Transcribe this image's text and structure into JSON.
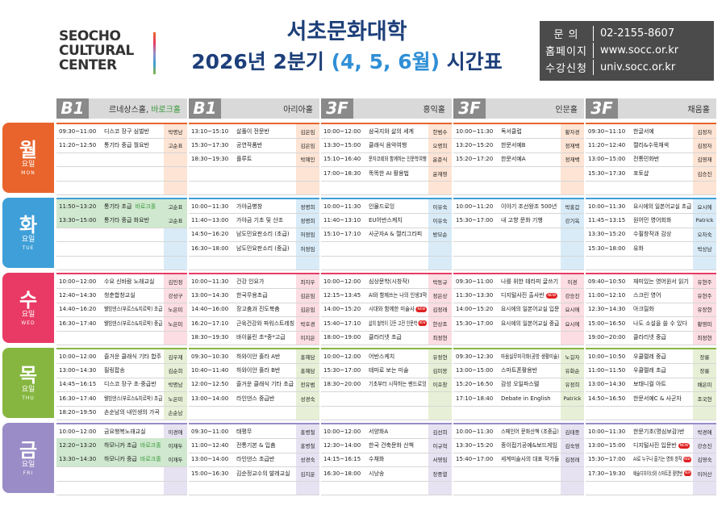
{
  "header": {
    "logo": [
      "SEOCHO",
      "CULTURAL",
      "CENTER"
    ],
    "title": "서초문화대학",
    "subtitle": [
      "2026년 2분기",
      "(4, 5, 6월)",
      "시간표"
    ],
    "contacts": [
      {
        "label": "문 의",
        "value": "02-2155-8607"
      },
      {
        "label": "홈페이지",
        "value": "www.socc.or.kr"
      },
      {
        "label": "수강신청",
        "value": "univ.socc.or.kr"
      }
    ]
  },
  "halls": [
    {
      "floor": "B1",
      "name": "르네상스홀,",
      "extra": "바로크홀"
    },
    {
      "floor": "B1",
      "name": "아리아홀"
    },
    {
      "floor": "3F",
      "name": "홍익홀"
    },
    {
      "floor": "3F",
      "name": "인문홀"
    },
    {
      "floor": "3F",
      "name": "채움홀"
    }
  ],
  "days": [
    {
      "name": "월",
      "suffix": "요일",
      "en": "MON",
      "color": "#e8642c",
      "tint": "#fde4d4"
    },
    {
      "name": "화",
      "suffix": "요일",
      "en": "TUE",
      "color": "#3f9fd8",
      "tint": "#d8ebf7"
    },
    {
      "name": "수",
      "suffix": "요일",
      "en": "WED",
      "color": "#e83a64",
      "tint": "#fbdde3"
    },
    {
      "name": "목",
      "suffix": "요일",
      "en": "THU",
      "color": "#86b640",
      "tint": "#e7f0d6"
    },
    {
      "name": "금",
      "suffix": "요일",
      "en": "FRI",
      "color": "#9a8cc6",
      "tint": "#e7e2f2"
    }
  ],
  "schedule": [
    [
      [
        {
          "time": "09:30~11:00",
          "course": "디스코 장구 심벌반",
          "teacher": "박명남"
        },
        {
          "time": "11:20~12:50",
          "course": "통기타 중급 월요반",
          "teacher": "고순표"
        }
      ],
      [
        {
          "time": "13:10~15:10",
          "course": "살풀이 전문반",
          "teacher": "김은임"
        },
        {
          "time": "15:30~17:30",
          "course": "공연작품반",
          "teacher": "김은임"
        },
        {
          "time": "18:30~19:30",
          "course": "플루트",
          "teacher": "박혜인"
        }
      ],
      [
        {
          "time": "10:00~12:00",
          "course": "삼국지와 삶의 세계",
          "teacher": "한범수"
        },
        {
          "time": "13:30~15:00",
          "course": "클래식 음악여행",
          "teacher": "오명희"
        },
        {
          "time": "15:10~16:40",
          "course": "문자코테와 함께하는 인문학여행",
          "teacher": "윤준식"
        },
        {
          "time": "17:00~18:30",
          "course": "똑똑한 AI 활용법",
          "teacher": "윤재영"
        }
      ],
      [
        {
          "time": "10:00~11:30",
          "course": "독서클럽",
          "teacher": "황자경"
        },
        {
          "time": "13:20~15:20",
          "course": "한문서예B",
          "teacher": "정재백"
        },
        {
          "time": "15:20~17:20",
          "course": "한문서예A",
          "teacher": "정재백"
        }
      ],
      [
        {
          "time": "09:30~11:10",
          "course": "한글서예",
          "teacher": "김정자"
        },
        {
          "time": "11:20~12:40",
          "course": "캘리&수묵채색",
          "teacher": "김정자"
        },
        {
          "time": "13:00~15:00",
          "course": "전통민화반",
          "teacher": "김영재"
        },
        {
          "time": "15:30~17:30",
          "course": "포토샵",
          "teacher": "김승진"
        }
      ]
    ],
    [
      [
        {
          "time": "11:50~13:20",
          "course": "통기타 초급",
          "tag": "바로크홀",
          "teacher": "고순표",
          "highlight": true
        },
        {
          "time": "13:30~15:00",
          "course": "통기타 중급 화요반",
          "teacher": "고순표",
          "highlight": true
        }
      ],
      [
        {
          "time": "10:00~11:30",
          "course": "가야금병창",
          "teacher": "정명희"
        },
        {
          "time": "11:40~13:00",
          "course": "가야금 기초 및 산조",
          "teacher": "정명희"
        },
        {
          "time": "14:50~16:20",
          "course": "남도민요판소리 (초급)",
          "teacher": "허정임"
        },
        {
          "time": "16:30~18:00",
          "course": "남도민요판소리 (중급)",
          "teacher": "허정임"
        }
      ],
      [
        {
          "time": "10:00~11:30",
          "course": "인물드로잉",
          "teacher": "이유숙"
        },
        {
          "time": "11:40~13:10",
          "course": "EU어반스케치",
          "teacher": "이유숙"
        },
        {
          "time": "15:10~17:10",
          "course": "사군자A & 캘리그라피",
          "teacher": "방모순"
        }
      ],
      [
        {
          "time": "10:00~11:20",
          "course": "이야기 조선왕조 500년",
          "teacher": "박홍갑"
        },
        {
          "time": "15:30~17:00",
          "course": "내 고향 문화 기행",
          "teacher": "강기옥"
        }
      ],
      [
        {
          "time": "10:00~11:30",
          "course": "요시에의 일본어교실 초급",
          "teacher": "요시에"
        },
        {
          "time": "11:45~13:15",
          "course": "원어민 영어회화",
          "teacher": "Patrick"
        },
        {
          "time": "13:30~15:20",
          "course": "수필창작과 감상",
          "teacher": "오차숙"
        },
        {
          "time": "15:30~18:00",
          "course": "유화",
          "teacher": "박상남"
        }
      ]
    ],
    [
      [
        {
          "time": "10:00~12:00",
          "course": "수요 신바람 노래교실",
          "teacher": "김민정"
        },
        {
          "time": "12:40~14:30",
          "course": "청춘합창교실",
          "teacher": "강성구"
        },
        {
          "time": "14:40~16:20",
          "course": "웰빙댄스(부르스&지르박) 초급",
          "teacher": "노은미"
        },
        {
          "time": "16:30~17:40",
          "course": "웰빙댄스(부르스&지르박) 중급",
          "teacher": "노은미"
        }
      ],
      [
        {
          "time": "10:00~11:30",
          "course": "건강 인요가",
          "teacher": "최지우"
        },
        {
          "time": "13:00~14:30",
          "course": "한국무용초급",
          "teacher": "김은임"
        },
        {
          "time": "14:40~16:00",
          "course": "장고춤과 진도북춤",
          "teacher": "김은임"
        },
        {
          "time": "16:20~17:10",
          "course": "근육건강와 파워스트레칭",
          "teacher": "박호경"
        },
        {
          "time": "18:30~19:30",
          "course": "바이올린 초*중*고급",
          "teacher": "이지은"
        }
      ],
      [
        {
          "time": "10:00~12:00",
          "course": "심상문학(시창작)",
          "teacher": "박동규"
        },
        {
          "time": "12:15~13:45",
          "course": "AI와 함께쓰는 나의 인생3막",
          "teacher": "정은상"
        },
        {
          "time": "14:00~15:20",
          "course": "시대와 함께한 미술사",
          "badge": "NEW",
          "teacher": "김정래"
        },
        {
          "time": "15:40~17:10",
          "course": "삶의 철학이 깃든 고전 인문학",
          "badge": "NEW",
          "teacher": "한상조"
        },
        {
          "time": "18:00~19:00",
          "course": "클라리넷 초급",
          "teacher": "최정현"
        }
      ],
      [
        {
          "time": "09:30~11:00",
          "course": "나를 위한 테라피 글쓰기",
          "teacher": "이경"
        },
        {
          "time": "11:30~13:30",
          "course": "디지털사진 출사반",
          "badge": "NEW",
          "teacher": "강승진"
        },
        {
          "time": "14:00~15:20",
          "course": "요시에의 일본어교실 입문",
          "teacher": "요시에"
        },
        {
          "time": "15:30~17:00",
          "course": "요시에의 일본어교실 중급",
          "teacher": "요시에"
        }
      ],
      [
        {
          "time": "09:40~10:50",
          "course": "재미있는 영어원서 읽기",
          "teacher": "유현주"
        },
        {
          "time": "11:00~12:10",
          "course": "스크린 영어",
          "teacher": "유현주"
        },
        {
          "time": "12:30~14:30",
          "course": "아크릴화",
          "teacher": "유장현"
        },
        {
          "time": "15:00~16:50",
          "course": "나도 소설을 쓸 수 있다",
          "teacher": "황영미"
        },
        {
          "time": "19:00~20:00",
          "course": "클라리넷 중급",
          "teacher": "최정현"
        }
      ]
    ],
    [
      [
        {
          "time": "10:00~12:00",
          "course": "즐거운 클래식 기타 합주",
          "teacher": "김우재"
        },
        {
          "time": "13:00~14:30",
          "course": "필링팝송",
          "teacher": "김순희"
        },
        {
          "time": "14:45~16:15",
          "course": "디스코 장구 초·중급반",
          "teacher": "박명남"
        },
        {
          "time": "16:30~17:40",
          "course": "웰빙댄스(부르스&지르박) 초급",
          "teacher": "노은미"
        },
        {
          "time": "18:20~19:50",
          "course": "손순남의 내인생의 가곡",
          "teacher": "손순남"
        }
      ],
      [
        {
          "time": "09:30~10:30",
          "course": "하와이안 훌라 A반",
          "teacher": "홍혜담"
        },
        {
          "time": "10:40~11:40",
          "course": "하와이안 훌라 B반",
          "teacher": "홍혜담"
        },
        {
          "time": "12:00~12:50",
          "course": "즐거운 클래식 기타 초급",
          "teacher": "전유범"
        },
        {
          "time": "13:00~14:00",
          "course": "라인댄스 중급반",
          "teacher": "성경숙"
        }
      ],
      [
        {
          "time": "10:00~12:00",
          "course": "어반스케치",
          "teacher": "유정현"
        },
        {
          "time": "15:30~17:00",
          "course": "테마로 보는 미술",
          "teacher": "김미봉"
        },
        {
          "time": "18:30~20:00",
          "course": "기초부터 시작하는 밴드로잉",
          "teacher": "이호창"
        }
      ],
      [
        {
          "time": "09:30~12:30",
          "course": "마음실무미각화(공방 생활미술)",
          "teacher": "노길자"
        },
        {
          "time": "13:00~15:00",
          "course": "스마트폰활용반",
          "teacher": "유화순"
        },
        {
          "time": "15:20~16:50",
          "course": "감성 오일파스텔",
          "teacher": "유정희"
        },
        {
          "time": "17:10~18:40",
          "course": "Debate in English",
          "teacher": "Patrick"
        }
      ],
      [
        {
          "time": "10:00~10:50",
          "course": "우쿨렐레 중급",
          "teacher": "장롱"
        },
        {
          "time": "11:00~11:50",
          "course": "우쿨렐레 초급",
          "teacher": "장롱"
        },
        {
          "time": "13:00~14:30",
          "course": "보태니컬 아트",
          "teacher": "배은미"
        },
        {
          "time": "14:50~16:50",
          "course": "한문서예C & 사군자",
          "teacher": "조국현"
        }
      ]
    ],
    [
      [
        {
          "time": "10:00~12:00",
          "course": "금요행복노래교실",
          "teacher": "이경애"
        },
        {
          "time": "12:20~13:20",
          "course": "하모니카 초급",
          "tag": "바로크홀",
          "teacher": "이재두",
          "highlight": true
        },
        {
          "time": "13:30~14:30",
          "course": "하모니카 중급",
          "tag": "바로크홀",
          "teacher": "이재두",
          "highlight": true
        }
      ],
      [
        {
          "time": "09:30~11:00",
          "course": "태평무",
          "teacher": "홍병철"
        },
        {
          "time": "11:00~12:40",
          "course": "전통기본 & 입춤",
          "teacher": "홍병철"
        },
        {
          "time": "13:00~14:00",
          "course": "라인댄스 초급반",
          "teacher": "성경숙"
        },
        {
          "time": "15:00~16:30",
          "course": "김순정교수의 발레교실",
          "teacher": "김지운"
        }
      ],
      [
        {
          "time": "10:00~12:00",
          "course": "서양화A",
          "teacher": "김선희"
        },
        {
          "time": "12:30~14:00",
          "course": "한국 건축문화 산책",
          "teacher": "이규혁"
        },
        {
          "time": "14:15~16:15",
          "course": "수채화",
          "teacher": "서영임"
        },
        {
          "time": "16:30~18:00",
          "course": "시낭송",
          "teacher": "장중열"
        }
      ],
      [
        {
          "time": "10:00~11:30",
          "course": "스페인어 문화산책 (초중급)",
          "teacher": "김태종"
        },
        {
          "time": "13:30~15:20",
          "course": "종이접기공예&보드게임",
          "teacher": "김숙영"
        },
        {
          "time": "15:40~17:00",
          "course": "세계미술사의 대표 작가들",
          "teacher": "김정래"
        }
      ],
      [
        {
          "time": "10:00~11:30",
          "course": "한문기초(명심보감)반",
          "teacher": "박경애"
        },
        {
          "time": "13:00~15:00",
          "course": "디지털사진 입문반",
          "badge": "NEW",
          "teacher": "강승진"
        },
        {
          "time": "15:30~17:00",
          "course": "AI로 누구나 즐기는 영화 창작",
          "badge": "NEW",
          "teacher": "김영숙"
        },
        {
          "time": "17:30~19:30",
          "course": "예술디자이너와 스마트폰 활영반",
          "badge": "NEW",
          "teacher": "이어산"
        }
      ]
    ]
  ]
}
